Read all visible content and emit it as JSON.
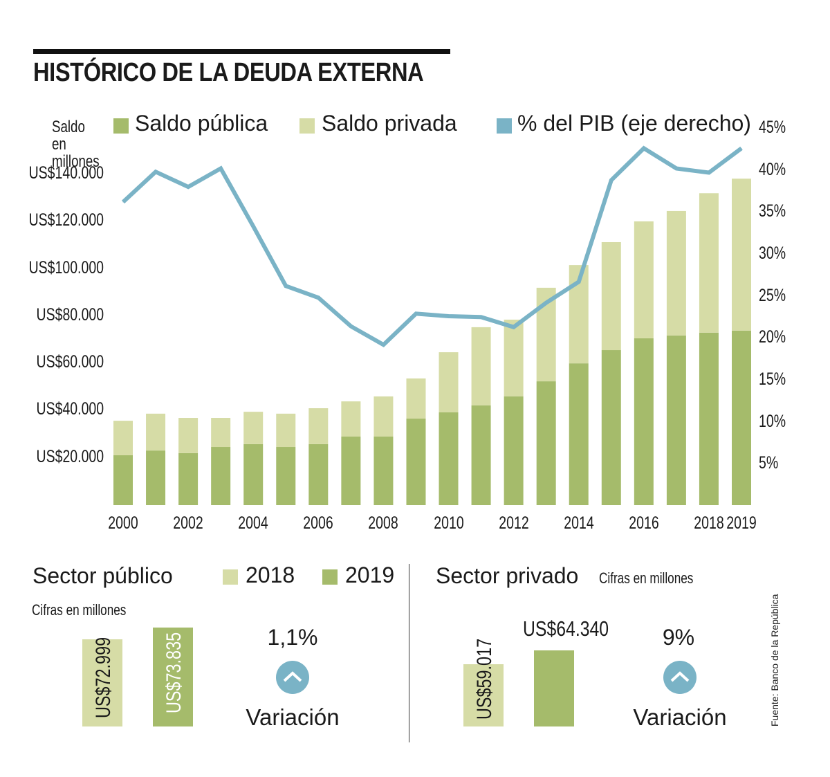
{
  "title": "HISTÓRICO DE LA DEUDA EXTERNA",
  "colors": {
    "publica": "#a5bb6b",
    "privada": "#d6dca6",
    "pib": "#7ab3c6"
  },
  "chart_data": {
    "type": "bar",
    "stacked": true,
    "title": "HISTÓRICO DE LA DEUDA EXTERNA",
    "ylabel": "Saldo en millones",
    "y2label": "% del PIB (eje derecho)",
    "categories": [
      "2000",
      "2001",
      "2002",
      "2003",
      "2004",
      "2005",
      "2006",
      "2007",
      "2008",
      "2009",
      "2010",
      "2011",
      "2012",
      "2013",
      "2014",
      "2015",
      "2016",
      "2017",
      "2018",
      "2019"
    ],
    "x_tick_labels": [
      "2000",
      "2002",
      "2004",
      "2006",
      "2008",
      "2010",
      "2012",
      "2014",
      "2016",
      "2018",
      "2019"
    ],
    "y_tick_labels": [
      "US$140.000",
      "US$120.000",
      "US$100.000",
      "US$80.000",
      "US$60.000",
      "US$40.000",
      "US$20.000"
    ],
    "y2_tick_labels": [
      "45%",
      "40%",
      "35%",
      "30%",
      "25%",
      "20%",
      "15%",
      "10%",
      "5%"
    ],
    "ylim": [
      0,
      140000
    ],
    "y2lim": [
      0,
      45
    ],
    "legend_position": "top",
    "series": [
      {
        "name": "Saldo pública",
        "type": "bar",
        "axis": "left",
        "values": [
          21100,
          23100,
          22000,
          24600,
          25800,
          24600,
          25800,
          29000,
          29000,
          36600,
          39300,
          42200,
          46000,
          52400,
          60000,
          65600,
          70600,
          71800,
          72999,
          73835
        ]
      },
      {
        "name": "Saldo privada",
        "type": "bar",
        "axis": "left",
        "values": [
          14600,
          15600,
          14900,
          12300,
          13700,
          14100,
          15200,
          14900,
          17000,
          17000,
          25400,
          33100,
          32500,
          39600,
          41600,
          45700,
          49500,
          52700,
          59017,
          64340
        ]
      },
      {
        "name": "% del PIB (eje derecho)",
        "type": "line",
        "axis": "right",
        "values": [
          36.1,
          39.7,
          37.9,
          40.1,
          33.2,
          26.1,
          24.7,
          21.3,
          19.1,
          22.8,
          22.5,
          22.4,
          21.2,
          24.1,
          26.6,
          38.7,
          42.5,
          40.1,
          39.6,
          42.5
        ]
      }
    ]
  },
  "publico": {
    "title": "Sector público",
    "subtitle": "Cifras en millones",
    "legend": [
      "2018",
      "2019"
    ],
    "values": [
      {
        "year": "2018",
        "label": "US$72.999",
        "value": 72999
      },
      {
        "year": "2019",
        "label": "US$73.835",
        "value": 73835
      }
    ],
    "variation": "1,1%",
    "variation_label": "Variación",
    "icon": "chevron-up-icon"
  },
  "privado": {
    "title": "Sector privado",
    "subtitle": "Cifras en millones",
    "values": [
      {
        "year": "2018",
        "label": "US$59.017",
        "value": 59017
      },
      {
        "year": "2019",
        "label": "US$64.340",
        "value": 64340
      }
    ],
    "variation": "9%",
    "variation_label": "Variación",
    "icon": "chevron-up-icon"
  },
  "source": "Fuente: Banco de la República"
}
